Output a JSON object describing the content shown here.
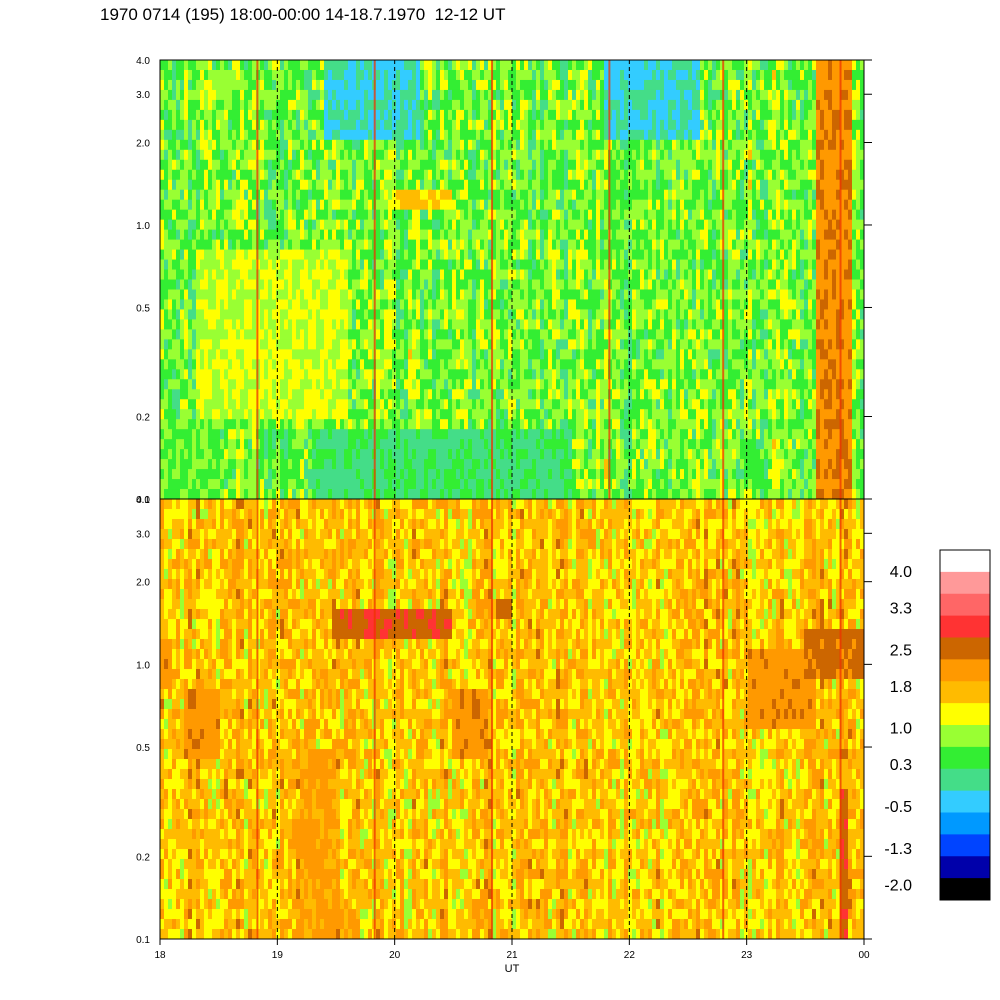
{
  "title": "1970 0714 (195) 18:00-00:00 14-18.7.1970  12-12 UT",
  "chart_data": {
    "type": "heatmap",
    "title": "1970 0714 (195) 18:00-00:00 14-18.7.1970  12-12 UT",
    "xlabel": "UT",
    "x_ticks": [
      "18",
      "19",
      "20",
      "21",
      "22",
      "23",
      "00"
    ],
    "xlim": [
      18,
      24
    ],
    "panels": [
      {
        "name": "upper",
        "ylim": [
          0.1,
          4.0
        ],
        "y_scale": "log",
        "y_ticks_left": [
          "0.1",
          "0.2",
          "0.5",
          "1.0",
          "2.0",
          "3.0",
          "4.0"
        ],
        "y_ticks_values": [
          0.1,
          0.2,
          0.5,
          1.0,
          2.0,
          3.0,
          4.0
        ],
        "background_level": 0.6,
        "features": [
          {
            "x": [
              19.4,
              20.2
            ],
            "y": [
              2.0,
              4.0
            ],
            "level": -0.3
          },
          {
            "x": [
              21.8,
              22.6
            ],
            "y": [
              2.0,
              4.0
            ],
            "level": -0.3
          },
          {
            "x": [
              20.0,
              20.5
            ],
            "y": [
              1.1,
              1.4
            ],
            "level": 1.5
          },
          {
            "x": [
              19.3,
              21.5
            ],
            "y": [
              0.1,
              0.18
            ],
            "level": 0.1
          },
          {
            "x": [
              18.0,
              18.5
            ],
            "y": [
              0.1,
              0.2
            ],
            "level": 0.5
          },
          {
            "x": [
              18.3,
              19.6
            ],
            "y": [
              0.2,
              0.8
            ],
            "level": 1.0
          },
          {
            "x": [
              23.6,
              23.9
            ],
            "y": [
              0.1,
              4.0
            ],
            "level": 2.2
          }
        ]
      },
      {
        "name": "lower",
        "ylim": [
          0.1,
          4.0
        ],
        "y_scale": "log",
        "y_ticks_left": [
          "0.1",
          "0.2",
          "0.5",
          "1.0",
          "2.0",
          "3.0",
          "4.0"
        ],
        "y_ticks_values": [
          0.1,
          0.2,
          0.5,
          1.0,
          2.0,
          3.0,
          4.0
        ],
        "background_level": 1.6,
        "features": [
          {
            "x": [
              19.45,
              20.5
            ],
            "y": [
              1.2,
              1.6
            ],
            "level": 2.6
          },
          {
            "x": [
              20.85,
              21.0
            ],
            "y": [
              1.5,
              1.8
            ],
            "level": 2.6
          },
          {
            "x": [
              18.2,
              18.5
            ],
            "y": [
              0.45,
              0.8
            ],
            "level": 2.1
          },
          {
            "x": [
              20.5,
              20.8
            ],
            "y": [
              0.45,
              0.8
            ],
            "level": 2.1
          },
          {
            "x": [
              23.0,
              23.6
            ],
            "y": [
              0.6,
              1.1
            ],
            "level": 2.1
          },
          {
            "x": [
              23.5,
              24.0
            ],
            "y": [
              0.9,
              1.3
            ],
            "level": 2.4
          },
          {
            "x": [
              23.78,
              23.88
            ],
            "y": [
              0.1,
              0.35
            ],
            "level": 2.6
          },
          {
            "x": [
              19.2,
              19.5
            ],
            "y": [
              0.1,
              0.5
            ],
            "level": 2.0
          },
          {
            "x": [
              18.0,
              18.1
            ],
            "y": [
              0.8,
              1.2
            ],
            "level": 2.1
          }
        ]
      }
    ],
    "vertical_lines": [
      {
        "x": 18.83,
        "panel": "both"
      },
      {
        "x": 19.83,
        "panel": "both"
      },
      {
        "x": 20.83,
        "panel": "both"
      },
      {
        "x": 21.83,
        "panel": "upper"
      },
      {
        "x": 22.8,
        "panel": "both"
      },
      {
        "x": 23.8,
        "panel": "both"
      }
    ],
    "colorbar": {
      "labels": [
        "4.0",
        "3.3",
        "2.5",
        "1.8",
        "1.0",
        "0.3",
        "-0.5",
        "-1.3",
        "-2.0"
      ],
      "label_values": [
        4.0,
        3.3,
        2.5,
        1.8,
        1.0,
        0.3,
        -0.5,
        -1.3,
        -2.0
      ],
      "colors": [
        "#ffffff",
        "#ff9999",
        "#ff6666",
        "#ff3333",
        "#cc6600",
        "#ff9900",
        "#ffbb00",
        "#ffff00",
        "#99ff33",
        "#33ee33",
        "#44dd88",
        "#33ccff",
        "#0099ff",
        "#0044ff",
        "#0000aa",
        "#000000"
      ]
    }
  }
}
